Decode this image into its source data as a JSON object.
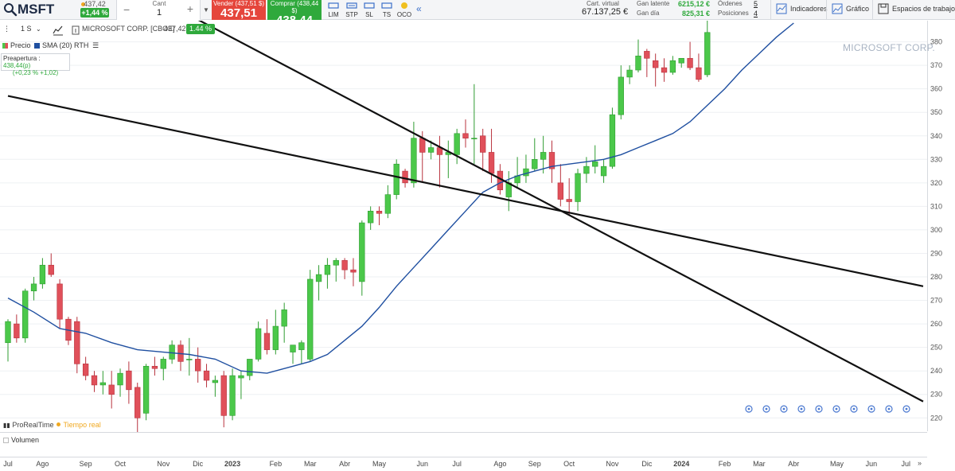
{
  "topbar": {
    "symbol": "MSFT",
    "mini_price": "437,42",
    "mini_change": "+1,44 %",
    "qty_label": "Cant",
    "qty_value": "1",
    "qty_minus": "−",
    "qty_plus": "+",
    "sell_label": "Vender (437,51 $)",
    "sell_price": "437,51",
    "buy_label": "Comprar (438,44 $)",
    "buy_price": "438,44",
    "order_types": [
      "LIM",
      "STP",
      "SL",
      "TS",
      "OCO"
    ],
    "cartera_label": "Cart. virtual",
    "cartera_value": "67.137,25 €",
    "gan_latente_label": "Gan latente",
    "gan_latente_value": "6215,12 €",
    "gan_dia_label": "Gan día",
    "gan_dia_value": "825,31 €",
    "ordenes_label": "Órdenes",
    "ordenes_value": "5",
    "posiciones_label": "Posiciones",
    "posiciones_value": "4",
    "indicadores_label": "Indicadores",
    "grafico_label": "Gráfico",
    "espacios_label": "Espacios de trabajo"
  },
  "chart_toolbar": {
    "period": "1 S",
    "instrument": "MICROSOFT CORP. [CBOE]",
    "price": "437,42",
    "change": "1.44 %"
  },
  "legend": {
    "price_label": "Precio",
    "sma_label": "SMA (20)",
    "rth_label": "RTH"
  },
  "preopen": {
    "label": "Preapertura :",
    "value": "438,44(p)",
    "change": "(+0,23 % +1,02)"
  },
  "watermark": "MICROSOFT CORP.",
  "footer": {
    "provider": "ProRealTime",
    "realtime": "Tiempo real",
    "volume_label": "Volumen"
  },
  "colors": {
    "up": "#4bc84a",
    "down": "#e0505a",
    "sma": "#1f4fa0",
    "trendline": "#111111",
    "sell": "#e5463c",
    "buy": "#2fa93c"
  },
  "chart_data": {
    "type": "candlestick",
    "title": "MICROSOFT CORP. [CBOE]",
    "ylim": [
      214,
      389
    ],
    "y_ticks": [
      220,
      230,
      240,
      250,
      260,
      270,
      280,
      290,
      300,
      310,
      320,
      330,
      340,
      350,
      360,
      370,
      380
    ],
    "x_labels": [
      "Jul",
      "Ago",
      "Sep",
      "Oct",
      "Nov",
      "Dic",
      "2023",
      "Feb",
      "Mar",
      "Abr",
      "May",
      "Jun",
      "Jul",
      "Ago",
      "Sep",
      "Oct",
      "Nov",
      "Dic",
      "2024",
      "Feb",
      "Mar",
      "Abr",
      "May",
      "Jun",
      "Jul"
    ],
    "x_label_slots": [
      0,
      4,
      9,
      13,
      18,
      22,
      26,
      31,
      35,
      39,
      43,
      48,
      52,
      57,
      61,
      65,
      70,
      74,
      78,
      83,
      87,
      91,
      96,
      100,
      104
    ],
    "x_slot_range": [
      0,
      106
    ],
    "candles": [
      [
        252,
        262,
        244,
        261
      ],
      [
        260,
        264,
        252,
        254
      ],
      [
        254,
        275,
        252,
        274
      ],
      [
        274,
        280,
        270,
        277
      ],
      [
        277,
        288,
        275,
        285
      ],
      [
        285,
        290,
        280,
        281
      ],
      [
        277,
        279,
        258,
        262
      ],
      [
        262,
        263,
        251,
        253
      ],
      [
        261,
        263,
        239,
        243
      ],
      [
        243,
        246,
        236,
        238
      ],
      [
        238,
        240,
        231,
        234
      ],
      [
        234,
        240,
        230,
        235
      ],
      [
        234,
        240,
        224,
        230
      ],
      [
        234,
        241,
        229,
        239
      ],
      [
        240,
        244,
        226,
        232
      ],
      [
        233,
        235,
        214,
        220
      ],
      [
        222,
        243,
        219,
        242
      ],
      [
        242,
        246,
        238,
        241
      ],
      [
        241,
        246,
        236,
        245
      ],
      [
        245,
        253,
        243,
        251
      ],
      [
        251,
        253,
        240,
        244
      ],
      [
        245,
        254,
        238,
        245
      ],
      [
        245,
        250,
        235,
        240
      ],
      [
        240,
        243,
        233,
        236
      ],
      [
        235,
        238,
        229,
        236
      ],
      [
        238,
        240,
        216,
        221
      ],
      [
        221,
        241,
        219,
        238
      ],
      [
        237,
        240,
        228,
        238
      ],
      [
        238,
        245,
        236,
        245
      ],
      [
        245,
        261,
        244,
        258
      ],
      [
        256,
        262,
        247,
        249
      ],
      [
        249,
        266,
        247,
        259
      ],
      [
        259,
        269,
        252,
        266
      ],
      [
        248,
        251,
        243,
        251
      ],
      [
        249,
        253,
        243,
        252
      ],
      [
        245,
        283,
        244,
        279
      ],
      [
        278,
        285,
        270,
        281
      ],
      [
        281,
        288,
        275,
        285
      ],
      [
        285,
        288,
        278,
        287
      ],
      [
        287,
        288,
        279,
        283
      ],
      [
        283,
        288,
        276,
        282
      ],
      [
        278,
        304,
        272,
        303
      ],
      [
        303,
        310,
        300,
        308
      ],
      [
        308,
        310,
        302,
        307
      ],
      [
        307,
        319,
        305,
        315
      ],
      [
        315,
        330,
        313,
        328
      ],
      [
        325,
        326,
        318,
        320
      ],
      [
        320,
        346,
        318,
        339
      ],
      [
        339,
        342,
        320,
        333
      ],
      [
        333,
        338,
        330,
        335
      ],
      [
        335,
        340,
        318,
        332
      ],
      [
        332,
        338,
        322,
        333
      ],
      [
        332,
        343,
        328,
        341
      ],
      [
        341,
        347,
        335,
        339
      ],
      [
        339,
        362,
        328,
        339
      ],
      [
        340,
        343,
        325,
        333
      ],
      [
        333,
        343,
        320,
        324
      ],
      [
        325,
        328,
        315,
        317
      ],
      [
        314,
        325,
        308,
        320
      ],
      [
        320,
        331,
        318,
        323
      ],
      [
        323,
        332,
        320,
        326
      ],
      [
        326,
        339,
        325,
        330
      ],
      [
        330,
        340,
        324,
        333
      ],
      [
        333,
        338,
        320,
        326
      ],
      [
        320,
        328,
        310,
        313
      ],
      [
        313,
        322,
        306,
        312
      ],
      [
        312,
        326,
        308,
        324
      ],
      [
        324,
        331,
        320,
        327
      ],
      [
        327,
        336,
        324,
        329
      ],
      [
        323,
        330,
        320,
        327
      ],
      [
        327,
        352,
        326,
        349
      ],
      [
        349,
        370,
        347,
        365
      ],
      [
        365,
        370,
        362,
        368
      ],
      [
        368,
        381,
        367,
        374
      ],
      [
        376,
        377,
        365,
        373
      ],
      [
        372,
        375,
        361,
        369
      ],
      [
        369,
        373,
        363,
        367
      ],
      [
        367,
        374,
        366,
        372
      ],
      [
        371,
        372,
        369,
        373
      ],
      [
        373,
        380,
        368,
        369
      ],
      [
        369,
        375,
        363,
        364
      ],
      [
        366,
        389,
        365,
        384
      ]
    ],
    "sma20": [
      [
        0,
        271
      ],
      [
        3,
        265
      ],
      [
        6,
        258
      ],
      [
        9,
        256
      ],
      [
        12,
        252
      ],
      [
        15,
        249
      ],
      [
        18,
        248
      ],
      [
        21,
        247
      ],
      [
        24,
        245
      ],
      [
        27,
        240
      ],
      [
        30,
        239
      ],
      [
        33,
        242
      ],
      [
        35,
        244
      ],
      [
        37,
        247
      ],
      [
        39,
        253
      ],
      [
        41,
        259
      ],
      [
        43,
        267
      ],
      [
        45,
        276
      ],
      [
        47,
        284
      ],
      [
        49,
        292
      ],
      [
        51,
        300
      ],
      [
        53,
        308
      ],
      [
        55,
        316
      ],
      [
        57,
        320
      ],
      [
        59,
        323
      ],
      [
        61,
        325
      ],
      [
        63,
        327
      ],
      [
        65,
        328
      ],
      [
        67,
        329
      ],
      [
        69,
        330
      ],
      [
        71,
        332
      ],
      [
        73,
        335
      ],
      [
        75,
        338
      ],
      [
        77,
        341
      ],
      [
        79,
        346
      ],
      [
        81,
        353
      ],
      [
        83,
        360
      ],
      [
        85,
        368
      ],
      [
        87,
        375
      ],
      [
        89,
        382
      ],
      [
        91,
        388
      ]
    ],
    "trendlines": [
      {
        "from": [
          0,
          357
        ],
        "to": [
          106,
          276
        ]
      },
      {
        "from": [
          0,
          432
        ],
        "to": [
          106,
          227
        ]
      }
    ]
  }
}
